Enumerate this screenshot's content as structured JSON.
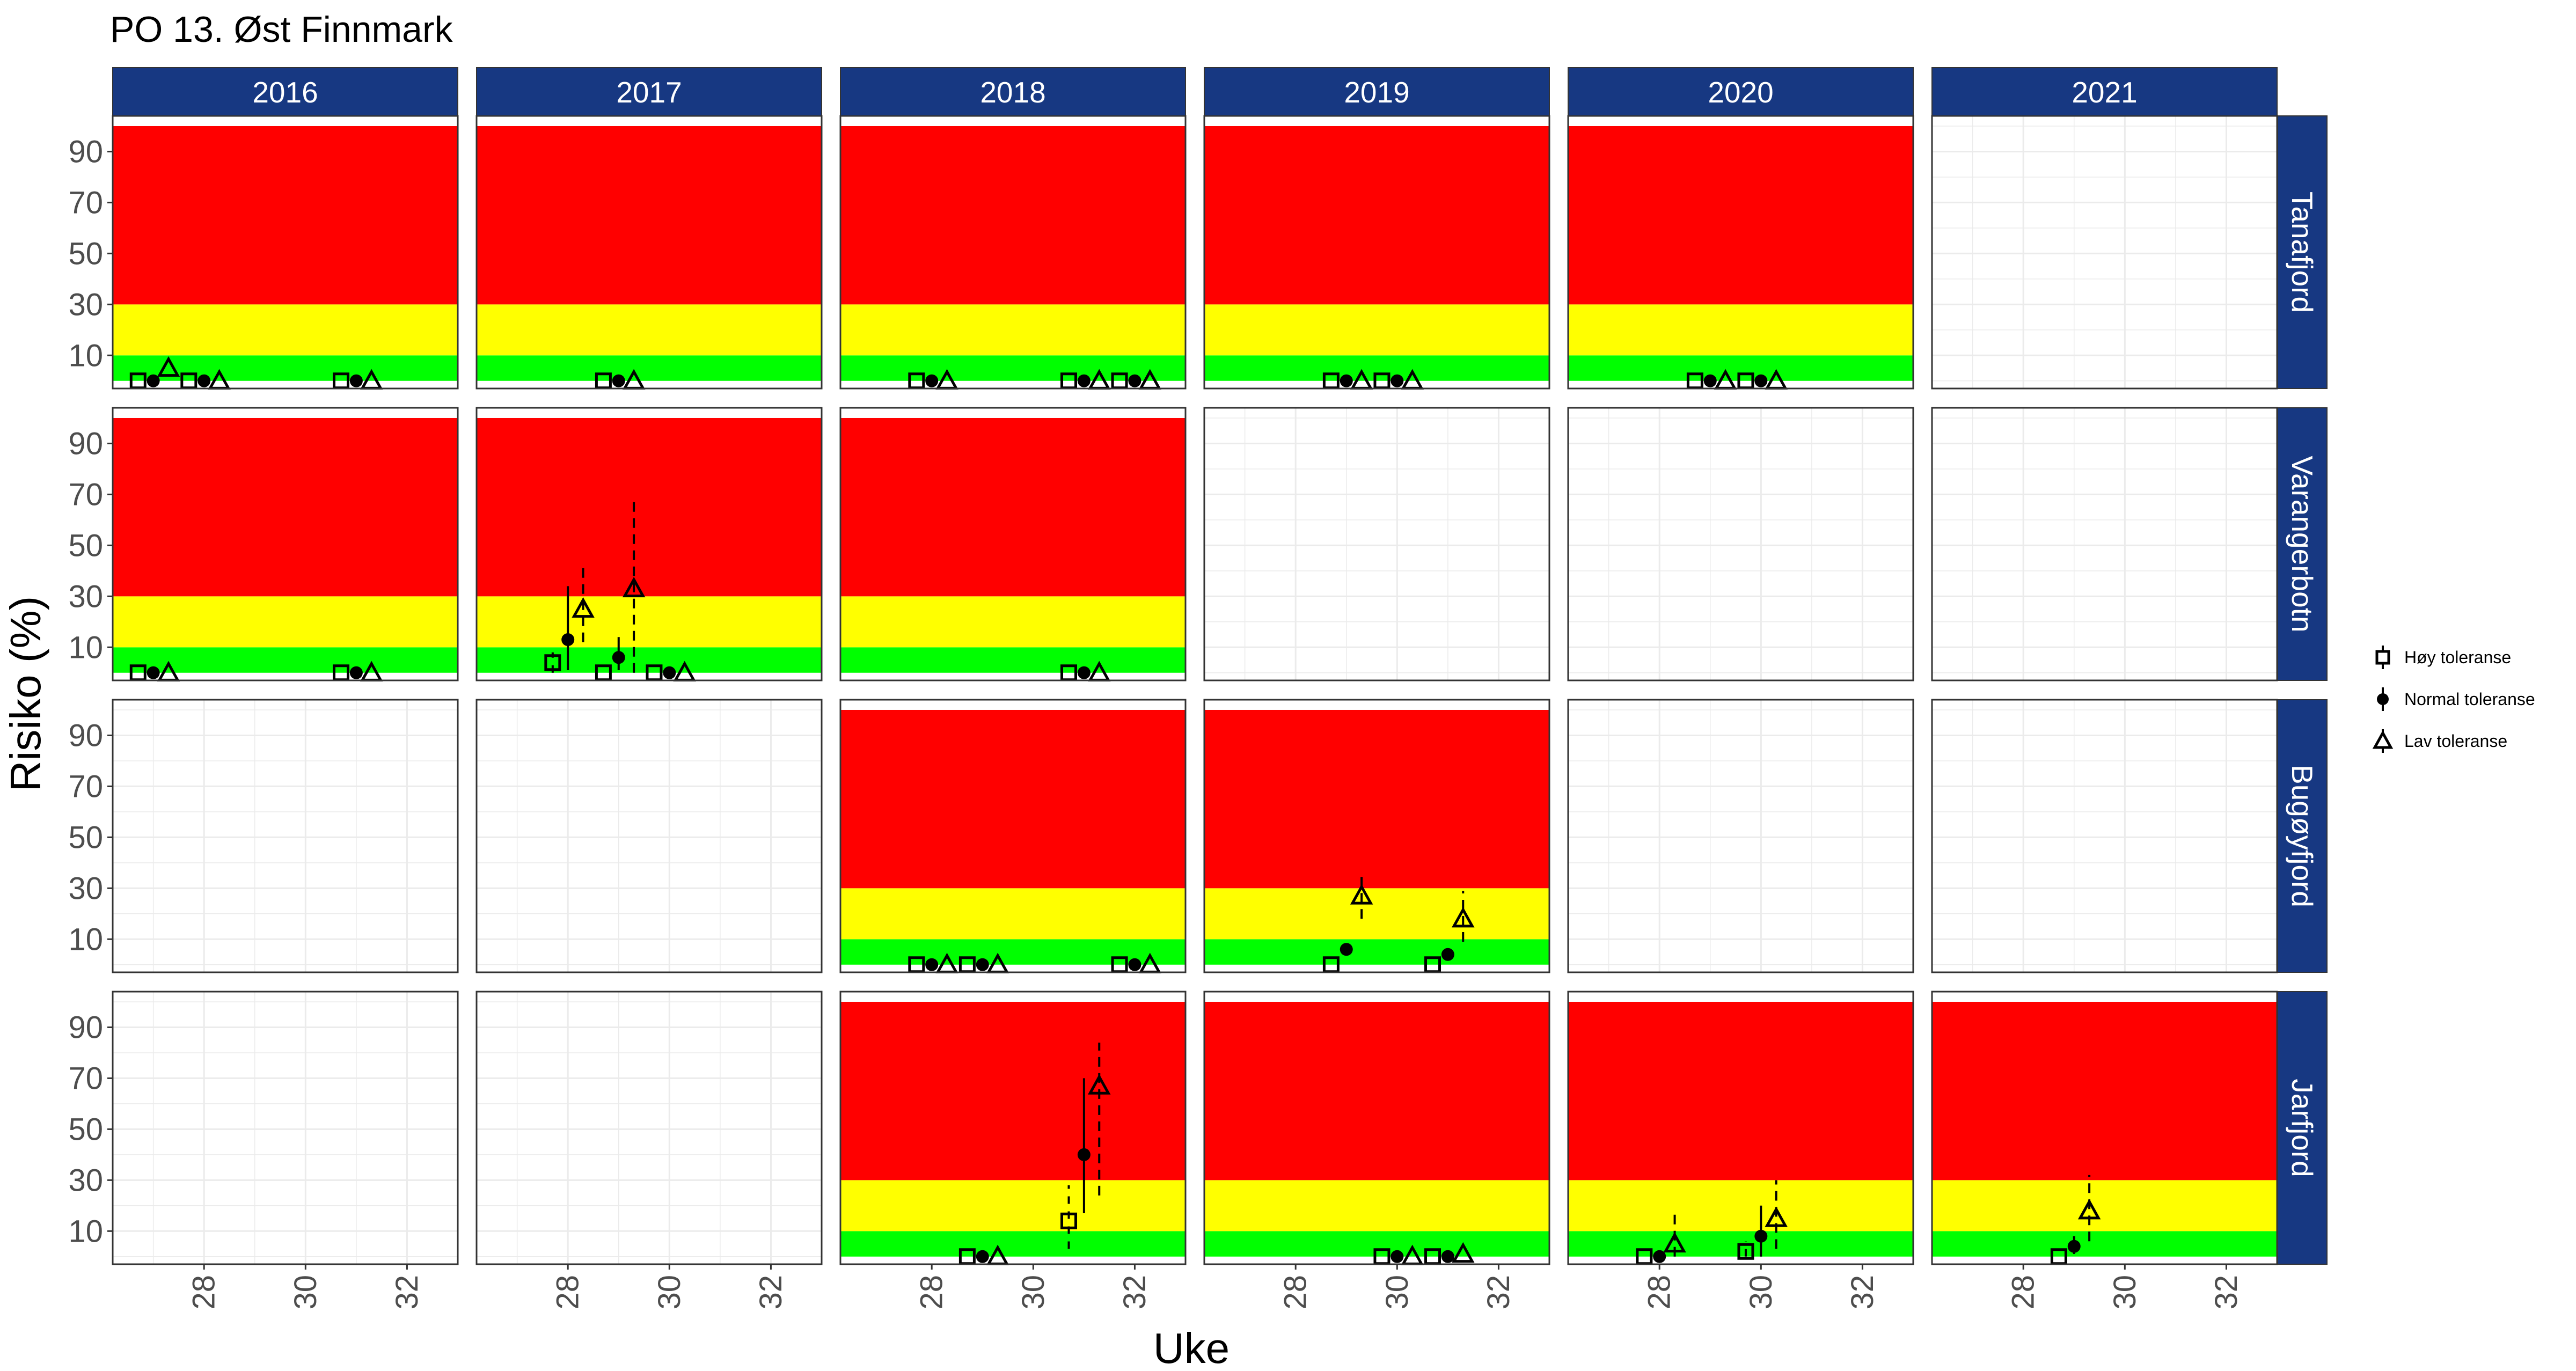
{
  "chart_data": {
    "type": "scatter",
    "title": "PO 13. Øst Finnmark",
    "xlabel": "Uke",
    "ylabel": "Risiko (%)",
    "xlim": [
      26.2,
      33.0
    ],
    "ylim": [
      -3,
      104
    ],
    "x_ticks": [
      28,
      30,
      32
    ],
    "y_ticks": [
      10,
      30,
      50,
      70,
      90
    ],
    "years": [
      "2016",
      "2017",
      "2018",
      "2019",
      "2020",
      "2021"
    ],
    "locations": [
      "Tanafjord",
      "Varangerbotn",
      "Bugøyfjord",
      "Jarfjord"
    ],
    "bands": [
      {
        "name": "green",
        "from": 0,
        "to": 10,
        "color": "#00ff00"
      },
      {
        "name": "yellow",
        "from": 10,
        "to": 30,
        "color": "#ffff00"
      },
      {
        "name": "red",
        "from": 30,
        "to": 100,
        "color": "#ff0000"
      }
    ],
    "colors": {
      "strip": "#173882",
      "strip_text": "#ffffff",
      "grid": "#ebebeb",
      "border": "#333333"
    },
    "legend": {
      "placement": "right",
      "entries": [
        {
          "key": "hoy",
          "label": "Høy toleranse",
          "shape": "square"
        },
        {
          "key": "normal",
          "label": "Normal toleranse",
          "shape": "circle"
        },
        {
          "key": "lav",
          "label": "Lav toleranse",
          "shape": "triangle"
        }
      ]
    },
    "panels": [
      {
        "row": "Tanafjord",
        "col": "2016",
        "bands": true,
        "points": [
          {
            "series": "hoy",
            "x": 26.7,
            "y": 0
          },
          {
            "series": "normal",
            "x": 27.0,
            "y": 0
          },
          {
            "series": "lav",
            "x": 27.3,
            "y": 5
          },
          {
            "series": "hoy",
            "x": 27.7,
            "y": 0
          },
          {
            "series": "normal",
            "x": 28.0,
            "y": 0
          },
          {
            "series": "lav",
            "x": 28.3,
            "y": 0
          },
          {
            "series": "hoy",
            "x": 30.7,
            "y": 0
          },
          {
            "series": "normal",
            "x": 31.0,
            "y": 0
          },
          {
            "series": "lav",
            "x": 31.3,
            "y": 0
          }
        ]
      },
      {
        "row": "Tanafjord",
        "col": "2017",
        "bands": true,
        "points": [
          {
            "series": "hoy",
            "x": 28.7,
            "y": 0
          },
          {
            "series": "normal",
            "x": 29.0,
            "y": 0
          },
          {
            "series": "lav",
            "x": 29.3,
            "y": 0
          }
        ]
      },
      {
        "row": "Tanafjord",
        "col": "2018",
        "bands": true,
        "points": [
          {
            "series": "hoy",
            "x": 27.7,
            "y": 0
          },
          {
            "series": "normal",
            "x": 28.0,
            "y": 0
          },
          {
            "series": "lav",
            "x": 28.3,
            "y": 0
          },
          {
            "series": "hoy",
            "x": 30.7,
            "y": 0
          },
          {
            "series": "normal",
            "x": 31.0,
            "y": 0
          },
          {
            "series": "lav",
            "x": 31.3,
            "y": 0
          },
          {
            "series": "hoy",
            "x": 31.7,
            "y": 0
          },
          {
            "series": "normal",
            "x": 32.0,
            "y": 0
          },
          {
            "series": "lav",
            "x": 32.3,
            "y": 0
          }
        ]
      },
      {
        "row": "Tanafjord",
        "col": "2019",
        "bands": true,
        "points": [
          {
            "series": "hoy",
            "x": 28.7,
            "y": 0
          },
          {
            "series": "normal",
            "x": 29.0,
            "y": 0
          },
          {
            "series": "lav",
            "x": 29.3,
            "y": 0
          },
          {
            "series": "hoy",
            "x": 29.7,
            "y": 0
          },
          {
            "series": "normal",
            "x": 30.0,
            "y": 0
          },
          {
            "series": "lav",
            "x": 30.3,
            "y": 0
          }
        ]
      },
      {
        "row": "Tanafjord",
        "col": "2020",
        "bands": true,
        "points": [
          {
            "series": "hoy",
            "x": 28.7,
            "y": 0
          },
          {
            "series": "normal",
            "x": 29.0,
            "y": 0
          },
          {
            "series": "lav",
            "x": 29.3,
            "y": 0
          },
          {
            "series": "hoy",
            "x": 29.7,
            "y": 0
          },
          {
            "series": "normal",
            "x": 30.0,
            "y": 0
          },
          {
            "series": "lav",
            "x": 30.3,
            "y": 0
          }
        ]
      },
      {
        "row": "Tanafjord",
        "col": "2021",
        "bands": false,
        "points": []
      },
      {
        "row": "Varangerbotn",
        "col": "2016",
        "bands": true,
        "points": [
          {
            "series": "hoy",
            "x": 26.7,
            "y": 0
          },
          {
            "series": "normal",
            "x": 27.0,
            "y": 0
          },
          {
            "series": "lav",
            "x": 27.3,
            "y": 0
          },
          {
            "series": "hoy",
            "x": 30.7,
            "y": 0
          },
          {
            "series": "normal",
            "x": 31.0,
            "y": 0
          },
          {
            "series": "lav",
            "x": 31.3,
            "y": 0
          }
        ]
      },
      {
        "row": "Varangerbotn",
        "col": "2017",
        "bands": true,
        "points": [
          {
            "series": "hoy",
            "x": 27.7,
            "y": 4,
            "ymin": 0,
            "ymax": 8
          },
          {
            "series": "normal",
            "x": 28.0,
            "y": 13,
            "ymin": 1,
            "ymax": 34
          },
          {
            "series": "lav",
            "x": 28.3,
            "y": 25,
            "ymin": 12,
            "ymax": 43
          },
          {
            "series": "hoy",
            "x": 28.7,
            "y": 0
          },
          {
            "series": "normal",
            "x": 29.0,
            "y": 6,
            "ymin": 1,
            "ymax": 14
          },
          {
            "series": "lav",
            "x": 29.3,
            "y": 33,
            "ymin": 0,
            "ymax": 68
          },
          {
            "series": "hoy",
            "x": 29.7,
            "y": 0
          },
          {
            "series": "normal",
            "x": 30.0,
            "y": 0
          },
          {
            "series": "lav",
            "x": 30.3,
            "y": 0
          }
        ]
      },
      {
        "row": "Varangerbotn",
        "col": "2018",
        "bands": true,
        "points": [
          {
            "series": "hoy",
            "x": 30.7,
            "y": 0
          },
          {
            "series": "normal",
            "x": 31.0,
            "y": 0
          },
          {
            "series": "lav",
            "x": 31.3,
            "y": 0
          }
        ]
      },
      {
        "row": "Varangerbotn",
        "col": "2019",
        "bands": false,
        "points": []
      },
      {
        "row": "Varangerbotn",
        "col": "2020",
        "bands": false,
        "points": []
      },
      {
        "row": "Varangerbotn",
        "col": "2021",
        "bands": false,
        "points": []
      },
      {
        "row": "Bugøyfjord",
        "col": "2016",
        "bands": false,
        "points": []
      },
      {
        "row": "Bugøyfjord",
        "col": "2017",
        "bands": false,
        "points": []
      },
      {
        "row": "Bugøyfjord",
        "col": "2018",
        "bands": true,
        "points": [
          {
            "series": "hoy",
            "x": 27.7,
            "y": 0
          },
          {
            "series": "normal",
            "x": 28.0,
            "y": 0
          },
          {
            "series": "lav",
            "x": 28.3,
            "y": 0
          },
          {
            "series": "hoy",
            "x": 28.7,
            "y": 0
          },
          {
            "series": "normal",
            "x": 29.0,
            "y": 0
          },
          {
            "series": "lav",
            "x": 29.3,
            "y": 0
          },
          {
            "series": "hoy",
            "x": 31.7,
            "y": 0
          },
          {
            "series": "normal",
            "x": 32.0,
            "y": 0
          },
          {
            "series": "lav",
            "x": 32.3,
            "y": 0
          }
        ]
      },
      {
        "row": "Bugøyfjord",
        "col": "2019",
        "bands": true,
        "points": [
          {
            "series": "hoy",
            "x": 28.7,
            "y": 0
          },
          {
            "series": "normal",
            "x": 29.0,
            "y": 6
          },
          {
            "series": "lav",
            "x": 29.3,
            "y": 27,
            "ymin": 18,
            "ymax": 36
          },
          {
            "series": "hoy",
            "x": 30.7,
            "y": 0
          },
          {
            "series": "normal",
            "x": 31.0,
            "y": 4
          },
          {
            "series": "lav",
            "x": 31.3,
            "y": 18,
            "ymin": 9,
            "ymax": 29
          }
        ]
      },
      {
        "row": "Bugøyfjord",
        "col": "2020",
        "bands": false,
        "points": []
      },
      {
        "row": "Bugøyfjord",
        "col": "2021",
        "bands": false,
        "points": []
      },
      {
        "row": "Jarfjord",
        "col": "2016",
        "bands": false,
        "points": []
      },
      {
        "row": "Jarfjord",
        "col": "2017",
        "bands": false,
        "points": []
      },
      {
        "row": "Jarfjord",
        "col": "2018",
        "bands": true,
        "points": [
          {
            "series": "hoy",
            "x": 28.7,
            "y": 0
          },
          {
            "series": "normal",
            "x": 29.0,
            "y": 0
          },
          {
            "series": "lav",
            "x": 29.3,
            "y": 0
          },
          {
            "series": "hoy",
            "x": 30.7,
            "y": 14,
            "ymin": 3,
            "ymax": 28
          },
          {
            "series": "normal",
            "x": 31.0,
            "y": 40,
            "ymin": 17,
            "ymax": 70
          },
          {
            "series": "lav",
            "x": 31.3,
            "y": 67,
            "ymin": 24,
            "ymax": 84
          }
        ]
      },
      {
        "row": "Jarfjord",
        "col": "2019",
        "bands": true,
        "points": [
          {
            "series": "hoy",
            "x": 29.7,
            "y": 0
          },
          {
            "series": "normal",
            "x": 30.0,
            "y": 0
          },
          {
            "series": "lav",
            "x": 30.3,
            "y": 0
          },
          {
            "series": "hoy",
            "x": 30.7,
            "y": 0
          },
          {
            "series": "normal",
            "x": 31.0,
            "y": 0
          },
          {
            "series": "lav",
            "x": 31.3,
            "y": 1
          }
        ]
      },
      {
        "row": "Jarfjord",
        "col": "2020",
        "bands": true,
        "points": [
          {
            "series": "hoy",
            "x": 27.7,
            "y": 0
          },
          {
            "series": "normal",
            "x": 28.0,
            "y": 0
          },
          {
            "series": "lav",
            "x": 28.3,
            "y": 5,
            "ymin": 0,
            "ymax": 18
          },
          {
            "series": "hoy",
            "x": 29.7,
            "y": 2,
            "ymin": 0,
            "ymax": 6
          },
          {
            "series": "normal",
            "x": 30.0,
            "y": 8,
            "ymin": 0,
            "ymax": 20
          },
          {
            "series": "lav",
            "x": 30.3,
            "y": 15,
            "ymin": 3,
            "ymax": 30
          }
        ]
      },
      {
        "row": "Jarfjord",
        "col": "2021",
        "bands": true,
        "points": [
          {
            "series": "hoy",
            "x": 28.7,
            "y": 0
          },
          {
            "series": "normal",
            "x": 29.0,
            "y": 4,
            "ymin": 1,
            "ymax": 8
          },
          {
            "series": "lav",
            "x": 29.3,
            "y": 18,
            "ymin": 6,
            "ymax": 32
          }
        ]
      }
    ]
  }
}
